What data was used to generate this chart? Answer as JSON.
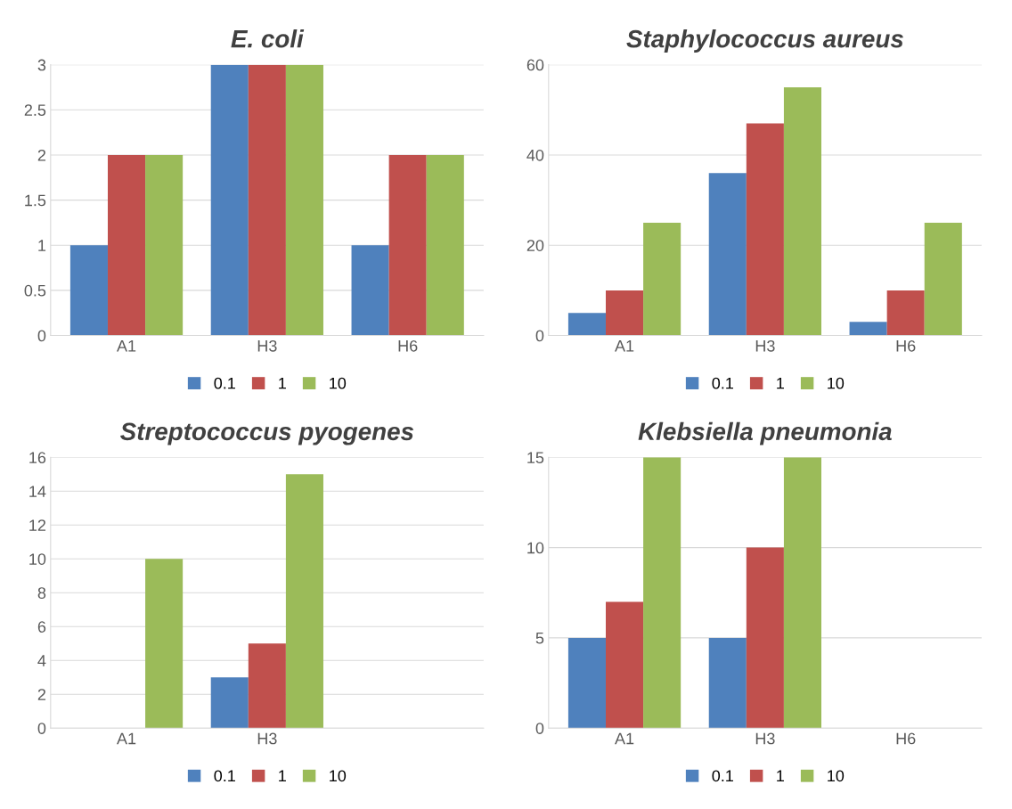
{
  "chart_data": [
    {
      "type": "bar",
      "title": "E. coli",
      "categories": [
        "A1",
        "H3",
        "H6"
      ],
      "series": [
        {
          "name": "0.1",
          "color": "#4f81bd",
          "values": [
            1,
            3,
            1
          ]
        },
        {
          "name": "1",
          "color": "#c0504d",
          "values": [
            2,
            3,
            2
          ]
        },
        {
          "name": "10",
          "color": "#9bbb59",
          "values": [
            2,
            3,
            2
          ]
        }
      ],
      "ylim": [
        0,
        3
      ],
      "yticks": [
        0,
        0.5,
        1,
        1.5,
        2,
        2.5,
        3
      ],
      "grid": "y",
      "legend": "bottom"
    },
    {
      "type": "bar",
      "title": "Staphylococcus aureus",
      "categories": [
        "A1",
        "H3",
        "H6"
      ],
      "series": [
        {
          "name": "0.1",
          "color": "#4f81bd",
          "values": [
            5,
            36,
            3
          ]
        },
        {
          "name": "1",
          "color": "#c0504d",
          "values": [
            10,
            47,
            10
          ]
        },
        {
          "name": "10",
          "color": "#9bbb59",
          "values": [
            25,
            55,
            25
          ]
        }
      ],
      "ylim": [
        0,
        60
      ],
      "yticks": [
        0,
        20,
        40,
        60
      ],
      "grid": "y",
      "legend": "bottom"
    },
    {
      "type": "bar",
      "title": "Streptococcus pyogenes",
      "categories": [
        "A1",
        "H3",
        null
      ],
      "series": [
        {
          "name": "0.1",
          "color": "#4f81bd",
          "values": [
            0,
            3,
            0
          ]
        },
        {
          "name": "1",
          "color": "#c0504d",
          "values": [
            0,
            5,
            0
          ]
        },
        {
          "name": "10",
          "color": "#9bbb59",
          "values": [
            10,
            15,
            0
          ]
        }
      ],
      "ylim": [
        0,
        16
      ],
      "yticks": [
        0,
        2,
        4,
        6,
        8,
        10,
        12,
        14,
        16
      ],
      "grid": "y",
      "legend": "bottom"
    },
    {
      "type": "bar",
      "title": "Klebsiella pneumonia",
      "categories": [
        "A1",
        "H3",
        "H6"
      ],
      "series": [
        {
          "name": "0.1",
          "color": "#4f81bd",
          "values": [
            5,
            5,
            0
          ]
        },
        {
          "name": "1",
          "color": "#c0504d",
          "values": [
            7,
            10,
            0
          ]
        },
        {
          "name": "10",
          "color": "#9bbb59",
          "values": [
            15,
            15,
            0
          ]
        }
      ],
      "ylim": [
        0,
        15
      ],
      "yticks": [
        0,
        5,
        10,
        15
      ],
      "grid": "y",
      "legend": "bottom"
    }
  ]
}
